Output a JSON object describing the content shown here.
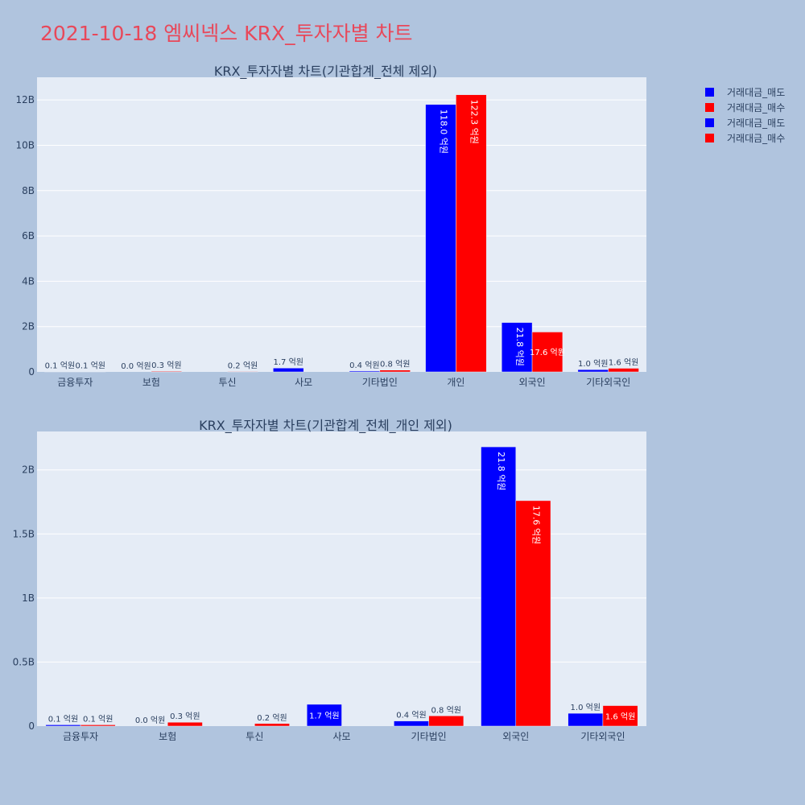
{
  "page": {
    "title": "2021-10-18 엠씨넥스 KRX_투자자별 차트"
  },
  "legend": [
    {
      "label": "거래대금_매도",
      "color": "#0000ff"
    },
    {
      "label": "거래대금_매수",
      "color": "#ff0000"
    },
    {
      "label": "거래대금_매도",
      "color": "#0000ff"
    },
    {
      "label": "거래대금_매수",
      "color": "#ff0000"
    }
  ],
  "chart_data": [
    {
      "type": "bar",
      "title": "KRX_투자자별 차트(기관합계_전체 제외)",
      "categories": [
        "금융투자",
        "보험",
        "투신",
        "사모",
        "기타법인",
        "개인",
        "외국인",
        "기타외국인"
      ],
      "ylim": [
        0,
        13
      ],
      "yticks": [
        0,
        2,
        4,
        6,
        8,
        10,
        12
      ],
      "ytick_labels": [
        "0",
        "2B",
        "4B",
        "6B",
        "8B",
        "10B",
        "12B"
      ],
      "grid": true,
      "series": [
        {
          "name": "거래대금_매도",
          "color": "#0000ff",
          "values": [
            0.01,
            0.0,
            null,
            0.17,
            0.04,
            11.8,
            2.18,
            0.1
          ],
          "labels": [
            "0.1 억원",
            "0.0 억원",
            "",
            "1.7 억원",
            "0.4 억원",
            "118.0 억원",
            "21.8 억원",
            "1.0 억원"
          ]
        },
        {
          "name": "거래대금_매수",
          "color": "#ff0000",
          "values": [
            0.01,
            0.03,
            0.02,
            null,
            0.08,
            12.23,
            1.76,
            0.16
          ],
          "labels": [
            "0.1 억원",
            "0.3 억원",
            "0.2 억원",
            "",
            "0.8 억원",
            "122.3 억원",
            "17.6 억원",
            "1.6 억원"
          ]
        }
      ]
    },
    {
      "type": "bar",
      "title": "KRX_투자자별 차트(기관합계_전체_개인 제외)",
      "categories": [
        "금융투자",
        "보험",
        "투신",
        "사모",
        "기타법인",
        "외국인",
        "기타외국인"
      ],
      "ylim": [
        0,
        2.3
      ],
      "yticks": [
        0,
        0.5,
        1,
        1.5,
        2
      ],
      "ytick_labels": [
        "0",
        "0.5B",
        "1B",
        "1.5B",
        "2B"
      ],
      "grid": true,
      "series": [
        {
          "name": "거래대금_매도",
          "color": "#0000ff",
          "values": [
            0.01,
            0.0,
            null,
            0.17,
            0.04,
            2.18,
            0.1
          ],
          "labels": [
            "0.1 억원",
            "0.0 억원",
            "",
            "1.7 억원",
            "0.4 억원",
            "21.8 억원",
            "1.0 억원"
          ]
        },
        {
          "name": "거래대금_매수",
          "color": "#ff0000",
          "values": [
            0.01,
            0.03,
            0.02,
            null,
            0.08,
            1.76,
            0.16
          ],
          "labels": [
            "0.1 억원",
            "0.3 억원",
            "0.2 억원",
            "",
            "0.8 억원",
            "17.6 억원",
            "1.6 억원"
          ]
        }
      ]
    }
  ]
}
